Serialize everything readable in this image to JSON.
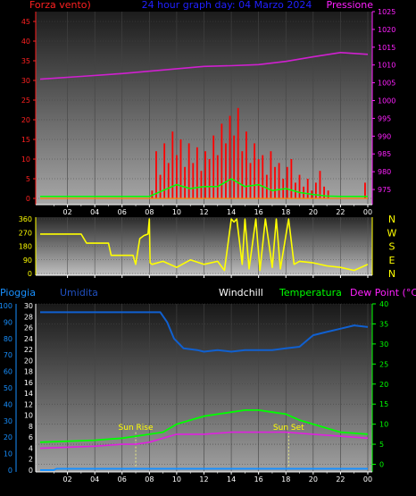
{
  "chart_data": [
    {
      "type": "bar",
      "panel": "wind-pressure",
      "title": "24 hour graph day: 04 Marzo 2024",
      "y_left_label": "Forza vento)",
      "y_right_label": "Pressione",
      "y_left_ticks": [
        "0",
        "5",
        "10",
        "15",
        "20",
        "25",
        "30",
        "35",
        "40",
        "45"
      ],
      "y_right_ticks": [
        "975",
        "980",
        "985",
        "990",
        "995",
        "1000",
        "1005",
        "1010",
        "1015",
        "1020",
        "1025"
      ],
      "x_ticks": [
        "02",
        "04",
        "06",
        "08",
        "10",
        "12",
        "14",
        "16",
        "18",
        "20",
        "22",
        "00"
      ],
      "ylim": [
        0,
        47.5
      ],
      "y2lim": [
        972.5,
        1025
      ],
      "series": [
        {
          "name": "Pressione",
          "type": "line",
          "color": "#d020d0",
          "x": [
            0,
            3,
            6,
            9,
            12,
            14,
            16,
            18,
            20,
            22,
            24
          ],
          "values": [
            1006,
            1006.8,
            1007.6,
            1008.6,
            1009.6,
            1009.8,
            1010.1,
            1011,
            1012.3,
            1013.5,
            1013
          ]
        },
        {
          "type": "bar",
          "color": "#ff0000",
          "x": [
            8.2,
            8.5,
            8.8,
            9.1,
            9.4,
            9.7,
            10.0,
            10.3,
            10.6,
            10.9,
            11.2,
            11.5,
            11.8,
            12.1,
            12.4,
            12.7,
            13.0,
            13.3,
            13.6,
            13.9,
            14.2,
            14.5,
            14.8,
            15.1,
            15.4,
            15.7,
            16.0,
            16.3,
            16.6,
            16.9,
            17.2,
            17.5,
            17.8,
            18.1,
            18.4,
            18.7,
            19.0,
            19.3,
            19.6,
            19.9,
            20.2,
            20.5,
            20.8,
            21.1,
            23.8
          ],
          "values": [
            2,
            12,
            6,
            14,
            9,
            17,
            11,
            15,
            8,
            14,
            9,
            13,
            7,
            12,
            10,
            16,
            11,
            19,
            14,
            21,
            16,
            23,
            12,
            17,
            9,
            14,
            10,
            11,
            6,
            12,
            8,
            9,
            5,
            8,
            10,
            4,
            6,
            3,
            5,
            2,
            4,
            7,
            3,
            2,
            4
          ]
        },
        {
          "type": "line",
          "color": "#00ff00",
          "x": [
            0,
            8,
            9,
            10,
            11,
            12,
            13,
            14,
            15,
            16,
            17,
            18,
            19,
            20,
            21,
            22,
            24
          ],
          "values": [
            0.5,
            0.5,
            2,
            3.5,
            2.5,
            3,
            3,
            5,
            3,
            3.5,
            2,
            2.5,
            1.5,
            1,
            0.6,
            0.5,
            0.5
          ]
        },
        {
          "type": "line",
          "color": "#ff8000",
          "x": [
            0,
            24
          ],
          "values": [
            0,
            0
          ]
        }
      ]
    },
    {
      "type": "line",
      "panel": "wind-direction",
      "y_left_ticks": [
        "0",
        "90",
        "180",
        "270",
        "360"
      ],
      "y_right_labels": [
        "N",
        "W",
        "S",
        "E",
        "N"
      ],
      "ylim": [
        0,
        360
      ],
      "series": [
        {
          "type": "line",
          "color": "#ffff00",
          "x": [
            0,
            3,
            3.4,
            5,
            5.2,
            6.8,
            7.0,
            7.3,
            7.6,
            7.9,
            8.0,
            8.05,
            8.2,
            9,
            10,
            11,
            12,
            13,
            13.5,
            14,
            14.2,
            14.4,
            14.8,
            15,
            15.3,
            15.8,
            16.1,
            16.5,
            17,
            17.3,
            17.6,
            18.2,
            18.6,
            19,
            20,
            21,
            22,
            23,
            24
          ],
          "values": [
            260,
            260,
            200,
            200,
            120,
            120,
            60,
            230,
            250,
            260,
            360,
            70,
            60,
            80,
            40,
            90,
            60,
            80,
            20,
            360,
            340,
            360,
            60,
            360,
            30,
            360,
            20,
            360,
            40,
            360,
            30,
            360,
            60,
            80,
            70,
            50,
            40,
            20,
            60
          ]
        }
      ]
    },
    {
      "type": "line",
      "panel": "rain-humidity-temperature",
      "labels": {
        "rain": "Pioggia",
        "humidity": "Umidita",
        "windchill": "Windchill",
        "temperature": "Temperatura",
        "dewpoint": "Dew Point (°C)"
      },
      "y_left_rain_ticks": [
        "0",
        "10",
        "20",
        "30",
        "40",
        "50",
        "60",
        "70",
        "80",
        "90",
        "100"
      ],
      "y_left_hum_ticks": [
        "0",
        "2",
        "4",
        "6",
        "8",
        "10",
        "12",
        "14",
        "16",
        "18",
        "20",
        "22",
        "24",
        "26",
        "28",
        "30"
      ],
      "y_right_temp_ticks": [
        "0",
        "5",
        "10",
        "15",
        "20",
        "25",
        "30",
        "35",
        "40"
      ],
      "templim": [
        -1,
        40
      ],
      "annotations": [
        {
          "text": "Sun Rise",
          "x": 7.0
        },
        {
          "text": "Sun Set",
          "x": 18.2
        }
      ],
      "series": [
        {
          "name": "Umidita",
          "color": "#1060d0",
          "x": [
            0,
            8,
            8.8,
            9.3,
            9.8,
            10.5,
            11.5,
            12,
            13,
            14,
            15,
            16,
            17,
            18,
            19,
            20,
            21,
            22,
            23,
            24
          ],
          "values": [
            96,
            96,
            96,
            90,
            80,
            74,
            73,
            72,
            73,
            72,
            73,
            73,
            73,
            74,
            75,
            82,
            84,
            86,
            88,
            87
          ]
        },
        {
          "name": "Temperatura",
          "color": "#00ff00",
          "x": [
            0,
            4,
            6,
            7,
            8,
            9,
            10,
            11,
            12,
            13,
            14,
            15,
            16,
            17,
            18,
            19,
            20,
            21,
            22,
            24
          ],
          "values": [
            5.5,
            6,
            6.5,
            7,
            7.5,
            8,
            10,
            11,
            12,
            12.5,
            13,
            13.5,
            13.5,
            13,
            12.5,
            11,
            10,
            9,
            8,
            7.5
          ]
        },
        {
          "name": "Dew Point (°C)",
          "color": "#e020e0",
          "x": [
            0,
            4,
            6,
            7,
            8,
            9,
            10,
            12,
            14,
            16,
            18,
            20,
            22,
            24
          ],
          "values": [
            4,
            4.5,
            5,
            5,
            5.5,
            6.5,
            7.5,
            7.5,
            8,
            8,
            8,
            7.5,
            7,
            6.5
          ]
        },
        {
          "name": "Pioggia",
          "color": "#1890ff",
          "x": [
            0,
            1,
            1.2,
            24
          ],
          "values": [
            0,
            0,
            0.8,
            0.8
          ]
        }
      ]
    }
  ]
}
